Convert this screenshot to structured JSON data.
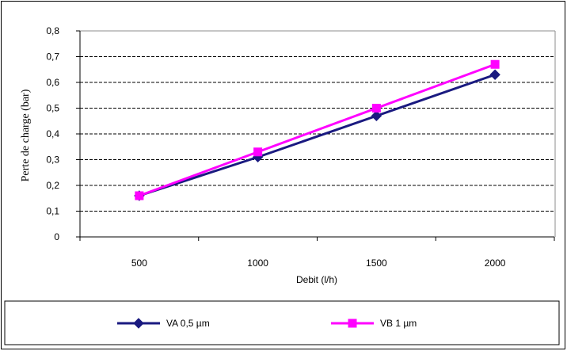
{
  "chart_data": {
    "type": "line",
    "title": "",
    "xlabel": "Debit  (l/h)",
    "ylabel": "Perte de charge (bar)",
    "categories": [
      "500",
      "1000",
      "1500",
      "2000"
    ],
    "ylim": [
      0,
      0.8
    ],
    "yticks": [
      "0",
      "0,1",
      "0,2",
      "0,3",
      "0,4",
      "0,5",
      "0,6",
      "0,7",
      "0,8"
    ],
    "grid": true,
    "legend_position": "bottom",
    "series": [
      {
        "name": "VA 0,5 µm",
        "values": [
          0.16,
          0.31,
          0.47,
          0.63
        ],
        "color": "#1a1a80",
        "marker": "diamond"
      },
      {
        "name": "VB 1 µm",
        "values": [
          0.16,
          0.33,
          0.5,
          0.67
        ],
        "color": "#ff00ff",
        "marker": "square"
      }
    ]
  }
}
